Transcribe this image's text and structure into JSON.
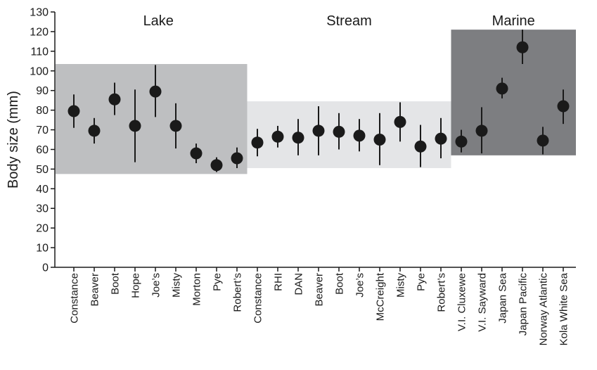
{
  "chart_data": {
    "type": "scatter",
    "title": "",
    "xlabel": "",
    "ylabel": "Body size (mm)",
    "ylim": [
      0,
      130
    ],
    "yticks": [
      0,
      10,
      20,
      30,
      40,
      50,
      60,
      70,
      80,
      90,
      100,
      110,
      120,
      130
    ],
    "grid": false,
    "groups": [
      {
        "name": "Lake",
        "shade_color": "#bebfc1",
        "shade_range": [
          47.5,
          103.5
        ],
        "populations": [
          {
            "label": "Constance",
            "mean": 79.5,
            "low": 71,
            "high": 88
          },
          {
            "label": "Beaver",
            "mean": 69.5,
            "low": 63,
            "high": 76
          },
          {
            "label": "Boot",
            "mean": 85.5,
            "low": 77.5,
            "high": 94
          },
          {
            "label": "Hope",
            "mean": 72,
            "low": 53.5,
            "high": 90.5
          },
          {
            "label": "Joe’s",
            "mean": 89.5,
            "low": 76.5,
            "high": 103
          },
          {
            "label": "Misty",
            "mean": 72,
            "low": 60.5,
            "high": 83.5
          },
          {
            "label": "Morton",
            "mean": 58,
            "low": 53,
            "high": 63
          },
          {
            "label": "Pye",
            "mean": 52,
            "low": 48.5,
            "high": 56
          },
          {
            "label": "Robert’s",
            "mean": 55.5,
            "low": 50.5,
            "high": 61
          }
        ]
      },
      {
        "name": "Stream",
        "shade_color": "#e4e5e7",
        "shade_range": [
          50.5,
          84.5
        ],
        "populations": [
          {
            "label": "Constance",
            "mean": 63.5,
            "low": 56.5,
            "high": 70.5
          },
          {
            "label": "RHI",
            "mean": 66.5,
            "low": 61,
            "high": 72
          },
          {
            "label": "DAN",
            "mean": 66,
            "low": 57,
            "high": 75.5
          },
          {
            "label": "Beaver",
            "mean": 69.5,
            "low": 57,
            "high": 82
          },
          {
            "label": "Boot",
            "mean": 69,
            "low": 60,
            "high": 78.5
          },
          {
            "label": "Joe’s",
            "mean": 67,
            "low": 59,
            "high": 75.5
          },
          {
            "label": "McCreight",
            "mean": 65,
            "low": 52,
            "high": 78.5
          },
          {
            "label": "Misty",
            "mean": 74,
            "low": 64,
            "high": 84
          },
          {
            "label": "Pye",
            "mean": 61.5,
            "low": 51,
            "high": 72.5
          },
          {
            "label": "Robert’s",
            "mean": 65.5,
            "low": 55.5,
            "high": 76
          }
        ]
      },
      {
        "name": "Marine",
        "shade_color": "#7d7e81",
        "shade_range": [
          57,
          121
        ],
        "populations": [
          {
            "label": "V.I. Cluxewe",
            "mean": 64,
            "low": 58.5,
            "high": 70
          },
          {
            "label": "V.I. Sayward",
            "mean": 69.5,
            "low": 58,
            "high": 81.5
          },
          {
            "label": "Japan Sea",
            "mean": 91,
            "low": 86,
            "high": 96.5
          },
          {
            "label": "Japan Pacific",
            "mean": 112,
            "low": 103.5,
            "high": 121
          },
          {
            "label": "Norway Atlantic",
            "mean": 64.5,
            "low": 57.5,
            "high": 71.5
          },
          {
            "label": "Kola White Sea",
            "mean": 82,
            "low": 73,
            "high": 90.5
          }
        ]
      }
    ],
    "marker_color": "#1a1a1a"
  }
}
